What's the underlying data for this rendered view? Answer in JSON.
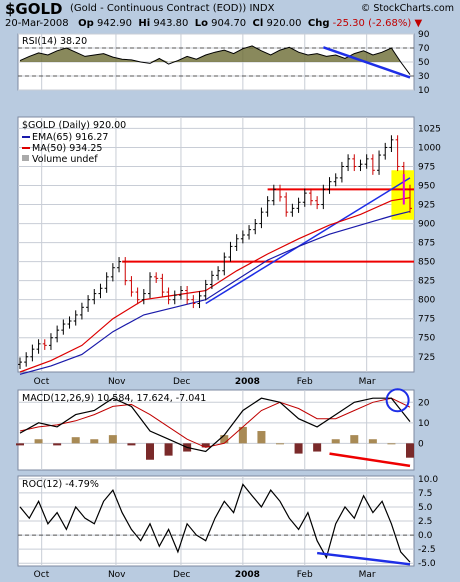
{
  "header": {
    "symbol": "$GOLD",
    "description": "(Gold - Continuous Contract (EOD)) INDX",
    "brand": "© StockCharts.com",
    "date": "20-Mar-2008",
    "open_label": "Op",
    "open": "942.90",
    "high_label": "Hi",
    "high": "943.80",
    "low_label": "Lo",
    "low": "904.70",
    "close_label": "Cl",
    "close": "920.00",
    "chg_label": "Chg",
    "chg": "-25.30 (-2.68%)",
    "chg_arrow": "▼"
  },
  "colors": {
    "background": "#b9cbe0",
    "panel": "#ffffff",
    "grid": "#c8cdd6",
    "up_bar": "#000000",
    "down_bar": "#cc0000",
    "ema": "#1a1aaa",
    "ma": "#dd0000",
    "rsi_fill": "#6b6b33",
    "trend_blue": "#1e2ee6",
    "trend_red": "#ee0000",
    "highlight": "#ffff00"
  },
  "chart_data": [
    {
      "type": "line",
      "title": "RSI(14) 38.20",
      "yticks": [
        10,
        30,
        50,
        70,
        90
      ],
      "ylim": [
        10,
        90
      ],
      "overbought": 70,
      "oversold": 30,
      "series": [
        {
          "name": "RSI(14)",
          "x": [
            0,
            3,
            6,
            9,
            12,
            15,
            18,
            21,
            24,
            27,
            30,
            33,
            36,
            39,
            42,
            45,
            48,
            51,
            54,
            57,
            60,
            63,
            66,
            69,
            72,
            75,
            78,
            81,
            84,
            87,
            90,
            93,
            96,
            99,
            102,
            105,
            108,
            111,
            114,
            117,
            120,
            123,
            126
          ],
          "values": [
            52,
            58,
            63,
            60,
            66,
            70,
            64,
            58,
            60,
            62,
            57,
            54,
            53,
            50,
            48,
            55,
            47,
            52,
            58,
            54,
            60,
            64,
            67,
            62,
            69,
            73,
            66,
            60,
            67,
            71,
            64,
            60,
            62,
            58,
            60,
            55,
            62,
            66,
            60,
            64,
            70,
            50,
            32
          ]
        }
      ]
    },
    {
      "type": "bar",
      "title": "$GOLD (Daily) 920.00",
      "legend": [
        "EMA(65) 916.27",
        "MA(50) 934.25",
        "Volume undef"
      ],
      "yticks": [
        725,
        750,
        775,
        800,
        825,
        850,
        875,
        900,
        925,
        950,
        975,
        1000,
        1025
      ],
      "ylim": [
        705,
        1040
      ],
      "xticks": [
        "Oct",
        "Nov",
        "Dec",
        "2008",
        "Feb",
        "Mar"
      ],
      "xtick_positions": [
        7,
        31,
        52,
        72,
        92,
        112
      ],
      "horizontal_levels": [
        850,
        945
      ],
      "price": {
        "x": [
          0,
          2,
          4,
          6,
          8,
          10,
          12,
          14,
          16,
          18,
          20,
          22,
          24,
          26,
          28,
          30,
          32,
          34,
          36,
          38,
          40,
          42,
          44,
          46,
          48,
          50,
          52,
          54,
          56,
          58,
          60,
          62,
          64,
          66,
          68,
          70,
          72,
          74,
          76,
          78,
          80,
          82,
          84,
          86,
          88,
          90,
          92,
          94,
          96,
          98,
          100,
          102,
          104,
          106,
          108,
          110,
          112,
          114,
          116,
          118,
          120,
          122,
          124,
          126
        ],
        "close": [
          718,
          725,
          735,
          742,
          740,
          750,
          760,
          768,
          772,
          780,
          790,
          800,
          808,
          815,
          830,
          842,
          850,
          825,
          810,
          800,
          808,
          830,
          828,
          810,
          800,
          806,
          812,
          800,
          795,
          805,
          820,
          832,
          838,
          856,
          870,
          880,
          885,
          892,
          900,
          915,
          930,
          945,
          935,
          915,
          920,
          928,
          940,
          930,
          925,
          945,
          955,
          960,
          975,
          985,
          975,
          978,
          985,
          970,
          990,
          1000,
          1010,
          975,
          945,
          920
        ]
      },
      "series": [
        {
          "name": "EMA(65)",
          "x": [
            0,
            10,
            20,
            30,
            40,
            50,
            60,
            70,
            80,
            90,
            100,
            110,
            120,
            126
          ],
          "values": [
            702,
            713,
            728,
            758,
            780,
            790,
            800,
            826,
            852,
            870,
            886,
            898,
            910,
            916
          ]
        },
        {
          "name": "MA(50)",
          "x": [
            0,
            10,
            20,
            30,
            40,
            50,
            60,
            70,
            80,
            90,
            100,
            110,
            120,
            126
          ],
          "values": [
            705,
            720,
            740,
            775,
            800,
            806,
            812,
            838,
            860,
            880,
            898,
            912,
            930,
            934
          ]
        }
      ]
    },
    {
      "type": "line",
      "title": "MACD(12,26,9) 10.584, 17.624, -7.041",
      "yticks": [
        0,
        10,
        20
      ],
      "ylim": [
        -13,
        26
      ],
      "series": [
        {
          "name": "MACD(12,26,9)",
          "x": [
            0,
            6,
            12,
            18,
            24,
            30,
            36,
            42,
            48,
            54,
            60,
            66,
            72,
            78,
            84,
            90,
            96,
            102,
            108,
            114,
            120,
            126
          ],
          "values": [
            5,
            10,
            8,
            14,
            16,
            22,
            18,
            6,
            2,
            -2,
            -4,
            4,
            16,
            22,
            20,
            12,
            8,
            14,
            20,
            22,
            22,
            10.6
          ]
        },
        {
          "name": "Signal",
          "x": [
            0,
            6,
            12,
            18,
            24,
            30,
            36,
            42,
            48,
            54,
            60,
            66,
            72,
            78,
            84,
            90,
            96,
            102,
            108,
            114,
            120,
            126
          ],
          "values": [
            6,
            8,
            9,
            11,
            14,
            18,
            19,
            14,
            8,
            2,
            -2,
            0,
            8,
            16,
            20,
            17,
            12,
            12,
            16,
            20,
            22,
            17.6
          ]
        }
      ],
      "histogram": {
        "x": [
          0,
          6,
          12,
          18,
          24,
          30,
          36,
          42,
          48,
          54,
          60,
          66,
          72,
          78,
          84,
          90,
          96,
          102,
          108,
          114,
          120,
          126
        ],
        "values": [
          -1,
          2,
          -1,
          3,
          2,
          4,
          -1,
          -8,
          -6,
          -4,
          -2,
          4,
          8,
          6,
          0,
          -5,
          -4,
          2,
          4,
          2,
          0,
          -7
        ]
      }
    },
    {
      "type": "line",
      "title": "ROC(12) -4.79%",
      "yticks": [
        -5.0,
        -2.5,
        0.0,
        2.5,
        5.0,
        7.5,
        10.0
      ],
      "ylim": [
        -5.5,
        10.5
      ],
      "series": [
        {
          "name": "ROC(12)",
          "x": [
            0,
            3,
            6,
            9,
            12,
            15,
            18,
            21,
            24,
            27,
            30,
            33,
            36,
            39,
            42,
            45,
            48,
            51,
            54,
            57,
            60,
            63,
            66,
            69,
            72,
            75,
            78,
            81,
            84,
            87,
            90,
            93,
            96,
            99,
            102,
            105,
            108,
            111,
            114,
            117,
            120,
            123,
            126
          ],
          "values": [
            5,
            3,
            6,
            2,
            4,
            1,
            5,
            3,
            2,
            6,
            8,
            4,
            1,
            -1,
            2,
            -2,
            1,
            -3,
            2,
            0,
            -1,
            3,
            6,
            4,
            9,
            7,
            5,
            8,
            6,
            3,
            1,
            4,
            -1,
            -4,
            2,
            5,
            3,
            7,
            4,
            6,
            2,
            -3,
            -4.8
          ]
        }
      ],
      "xticks": [
        "Oct",
        "Nov",
        "Dec",
        "2008",
        "Feb",
        "Mar"
      ]
    }
  ]
}
